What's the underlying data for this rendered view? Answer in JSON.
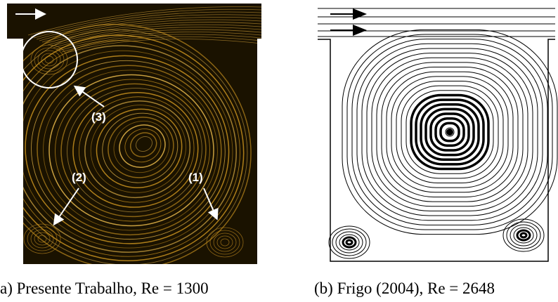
{
  "panel_a": {
    "labels": [
      "(3)",
      "(2)",
      "(1)"
    ],
    "caption": "a) Presente Trabalho, Re = 1300"
  },
  "panel_b": {
    "caption": "(b) Frigo (2004), Re = 2648"
  }
}
